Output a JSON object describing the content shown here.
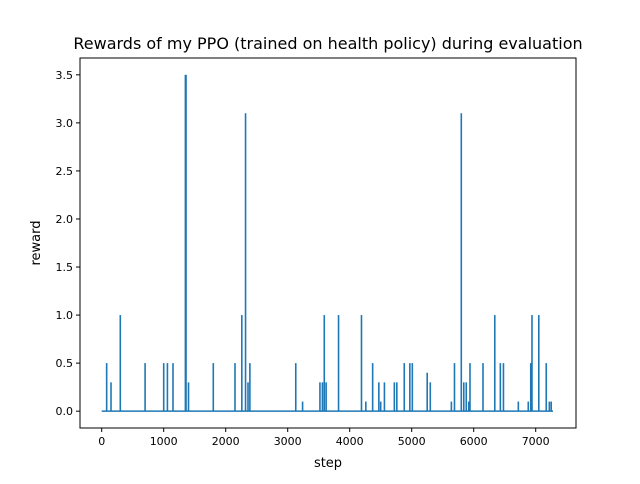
{
  "chart_data": {
    "type": "line",
    "title": "Rewards of my PPO (trained on health policy) during evaluation",
    "xlabel": "step",
    "ylabel": "reward",
    "xlim": [
      -350,
      7650
    ],
    "ylim": [
      -0.175,
      3.675
    ],
    "xticks": [
      0,
      1000,
      2000,
      3000,
      4000,
      5000,
      6000,
      7000
    ],
    "yticks": [
      0.0,
      0.5,
      1.0,
      1.5,
      2.0,
      2.5,
      3.0,
      3.5
    ],
    "xtick_labels": [
      "0",
      "1000",
      "2000",
      "3000",
      "4000",
      "5000",
      "6000",
      "7000"
    ],
    "ytick_labels": [
      "0.0",
      "0.5",
      "1.0",
      "1.5",
      "2.0",
      "2.5",
      "3.0",
      "3.5"
    ],
    "grid": false,
    "legend": "none",
    "line_color": "#1f77b4",
    "baseline": 0,
    "x_range": [
      0,
      7280
    ],
    "spikes": [
      {
        "x": 80,
        "y": 0.5
      },
      {
        "x": 150,
        "y": 0.3
      },
      {
        "x": 300,
        "y": 1.0
      },
      {
        "x": 700,
        "y": 0.5
      },
      {
        "x": 1000,
        "y": 0.5
      },
      {
        "x": 1060,
        "y": 0.5
      },
      {
        "x": 1150,
        "y": 0.5
      },
      {
        "x": 1350,
        "y": 3.5
      },
      {
        "x": 1360,
        "y": 3.5
      },
      {
        "x": 1400,
        "y": 0.3
      },
      {
        "x": 1800,
        "y": 0.5
      },
      {
        "x": 2150,
        "y": 0.5
      },
      {
        "x": 2260,
        "y": 1.0
      },
      {
        "x": 2320,
        "y": 3.1
      },
      {
        "x": 2360,
        "y": 0.3
      },
      {
        "x": 2390,
        "y": 0.5
      },
      {
        "x": 3130,
        "y": 0.5
      },
      {
        "x": 3240,
        "y": 0.1
      },
      {
        "x": 3520,
        "y": 0.3
      },
      {
        "x": 3560,
        "y": 0.3
      },
      {
        "x": 3590,
        "y": 1.0
      },
      {
        "x": 3620,
        "y": 0.3
      },
      {
        "x": 3820,
        "y": 1.0
      },
      {
        "x": 4190,
        "y": 1.0
      },
      {
        "x": 4260,
        "y": 0.1
      },
      {
        "x": 4370,
        "y": 0.5
      },
      {
        "x": 4470,
        "y": 0.3
      },
      {
        "x": 4500,
        "y": 0.1
      },
      {
        "x": 4560,
        "y": 0.3
      },
      {
        "x": 4720,
        "y": 0.3
      },
      {
        "x": 4760,
        "y": 0.3
      },
      {
        "x": 4880,
        "y": 0.5
      },
      {
        "x": 4970,
        "y": 0.5
      },
      {
        "x": 5010,
        "y": 0.5
      },
      {
        "x": 5250,
        "y": 0.4
      },
      {
        "x": 5300,
        "y": 0.3
      },
      {
        "x": 5640,
        "y": 0.1
      },
      {
        "x": 5690,
        "y": 0.5
      },
      {
        "x": 5800,
        "y": 3.1
      },
      {
        "x": 5840,
        "y": 0.3
      },
      {
        "x": 5880,
        "y": 0.3
      },
      {
        "x": 5920,
        "y": 0.1
      },
      {
        "x": 5940,
        "y": 0.5
      },
      {
        "x": 6150,
        "y": 0.5
      },
      {
        "x": 6340,
        "y": 1.0
      },
      {
        "x": 6430,
        "y": 0.5
      },
      {
        "x": 6480,
        "y": 0.5
      },
      {
        "x": 6720,
        "y": 0.1
      },
      {
        "x": 6880,
        "y": 0.1
      },
      {
        "x": 6920,
        "y": 0.5
      },
      {
        "x": 6940,
        "y": 1.0
      },
      {
        "x": 7050,
        "y": 1.0
      },
      {
        "x": 7170,
        "y": 0.5
      },
      {
        "x": 7220,
        "y": 0.1
      },
      {
        "x": 7250,
        "y": 0.1
      }
    ]
  }
}
